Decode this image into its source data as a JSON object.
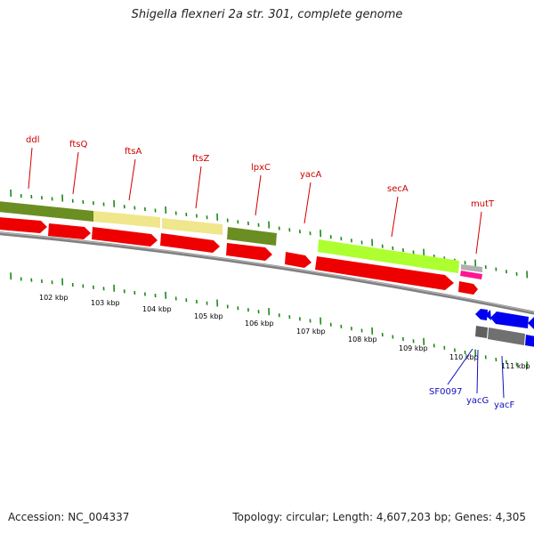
{
  "title": "Shigella flexneri 2a str. 301, complete genome",
  "footer": {
    "accession": "Accession: NC_004337",
    "summary": "Topology: circular; Length: 4,607,203 bp; Genes: 4,305"
  },
  "colors": {
    "tick": "#1a8a1a",
    "label_red": "#d00000",
    "label_blue": "#1010c0",
    "backbone": "#808080",
    "arrow_red": "#ee0000",
    "arrow_blue": "#0000ee",
    "olive": "#6b8e23",
    "khaki": "#f0e68c",
    "lime": "#adff2f",
    "grey": "#a0a0a0",
    "pink": "#ff1493",
    "dark_grey": "#606060"
  },
  "scale_labels": [
    "102 kbp",
    "103 kbp",
    "104 kbp",
    "105 kbp",
    "106 kbp",
    "107 kbp",
    "108 kbp",
    "109 kbp",
    "110 kbp",
    "111 kbp"
  ],
  "red_genes": [
    "ddl",
    "ftsQ",
    "ftsA",
    "ftsZ",
    "lpxC",
    "yacA",
    "secA",
    "mutT"
  ],
  "blue_genes": [
    "SF0097",
    "yacG",
    "yacF"
  ]
}
